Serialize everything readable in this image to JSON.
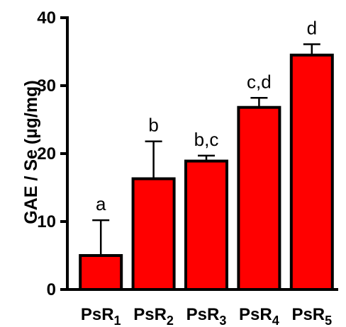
{
  "chart_data": {
    "type": "bar",
    "categories": [
      {
        "main": "PsR",
        "sub": "1"
      },
      {
        "main": "PsR",
        "sub": "2"
      },
      {
        "main": "PsR",
        "sub": "3"
      },
      {
        "main": "PsR",
        "sub": "4"
      },
      {
        "main": "PsR",
        "sub": "5"
      }
    ],
    "values": [
      5.0,
      16.3,
      18.9,
      26.8,
      34.5
    ],
    "errors": [
      5.2,
      5.5,
      0.8,
      1.4,
      1.6
    ],
    "significance": [
      "a",
      "b",
      "b,c",
      "c,d",
      "d"
    ],
    "ylabel": "GAE / Se  (µg/mg)",
    "ylim": [
      0,
      40
    ],
    "yticks": [
      "0",
      "10",
      "20",
      "30",
      "40"
    ],
    "bar_color": "#ff0000",
    "edge_color": "#000000",
    "grid": false
  }
}
